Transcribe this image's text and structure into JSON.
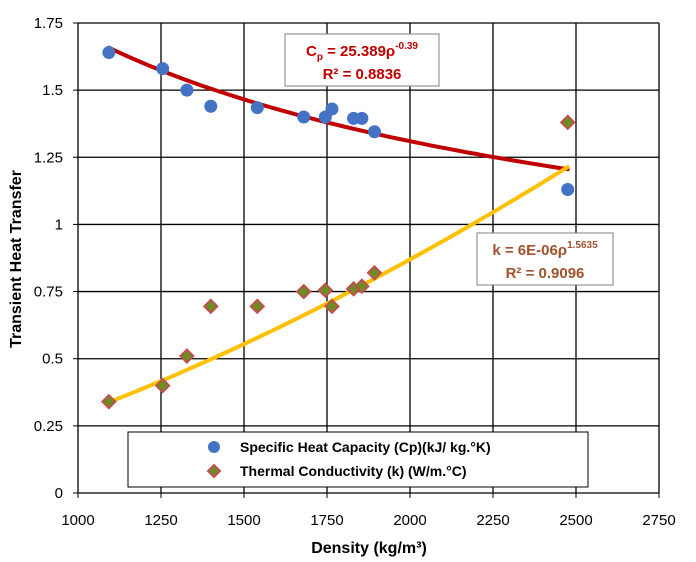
{
  "chart_data": {
    "type": "scatter",
    "xlabel": "Density (kg/m³)",
    "ylabel": "Transient Heat Transfer",
    "xlim": [
      1000,
      2750
    ],
    "ylim": [
      0,
      1.75
    ],
    "x_ticks": [
      "1000",
      "1250",
      "1500",
      "1750",
      "2000",
      "2250",
      "2500",
      "2750"
    ],
    "y_ticks": [
      "0",
      "0.25",
      "0.5",
      "0.75",
      "1",
      "1.25",
      "1.5",
      "1.75"
    ],
    "grid": true,
    "legend_position": "bottom-center",
    "series": [
      {
        "name": "Specific Heat Capacity (Cp)(kJ/ kg.°K)",
        "marker": "circle",
        "color": "#4472C4",
        "x": [
          1093,
          1255,
          1328,
          1400,
          1540,
          1680,
          1745,
          1765,
          1830,
          1855,
          1893,
          2475
        ],
        "y": [
          1.64,
          1.58,
          1.5,
          1.44,
          1.435,
          1.4,
          1.4,
          1.43,
          1.395,
          1.395,
          1.345,
          1.13
        ],
        "trendline": {
          "type": "power",
          "color": "#C00000",
          "a": 25.389,
          "b": -0.39,
          "equation_prefix": "C",
          "equation_sub": "p",
          "equation_mid": " = 25.389ρ",
          "equation_exp": "-0.39",
          "r2": "R² = 0.8836"
        }
      },
      {
        "name": "Thermal Conductivity (k) (W/m.°C)",
        "marker": "diamond",
        "color": "#C0504D",
        "x": [
          1093,
          1255,
          1328,
          1400,
          1540,
          1680,
          1745,
          1765,
          1830,
          1855,
          1893,
          2475
        ],
        "y": [
          0.34,
          0.4,
          0.51,
          0.695,
          0.695,
          0.75,
          0.755,
          0.695,
          0.76,
          0.77,
          0.82,
          1.38
        ],
        "trendline": {
          "type": "power",
          "color": "#FFC000",
          "a": 6e-06,
          "b": 1.5635,
          "equation_prefix": "k = 6E-06ρ",
          "equation_exp": "1.5635",
          "r2": "R² = 0.9096"
        }
      }
    ]
  },
  "colors": {
    "eq1_text": "#C00000",
    "eq2_text": "#A0522D",
    "eq_box_border": "#808080",
    "diamond_fill": "#6B8E23"
  }
}
